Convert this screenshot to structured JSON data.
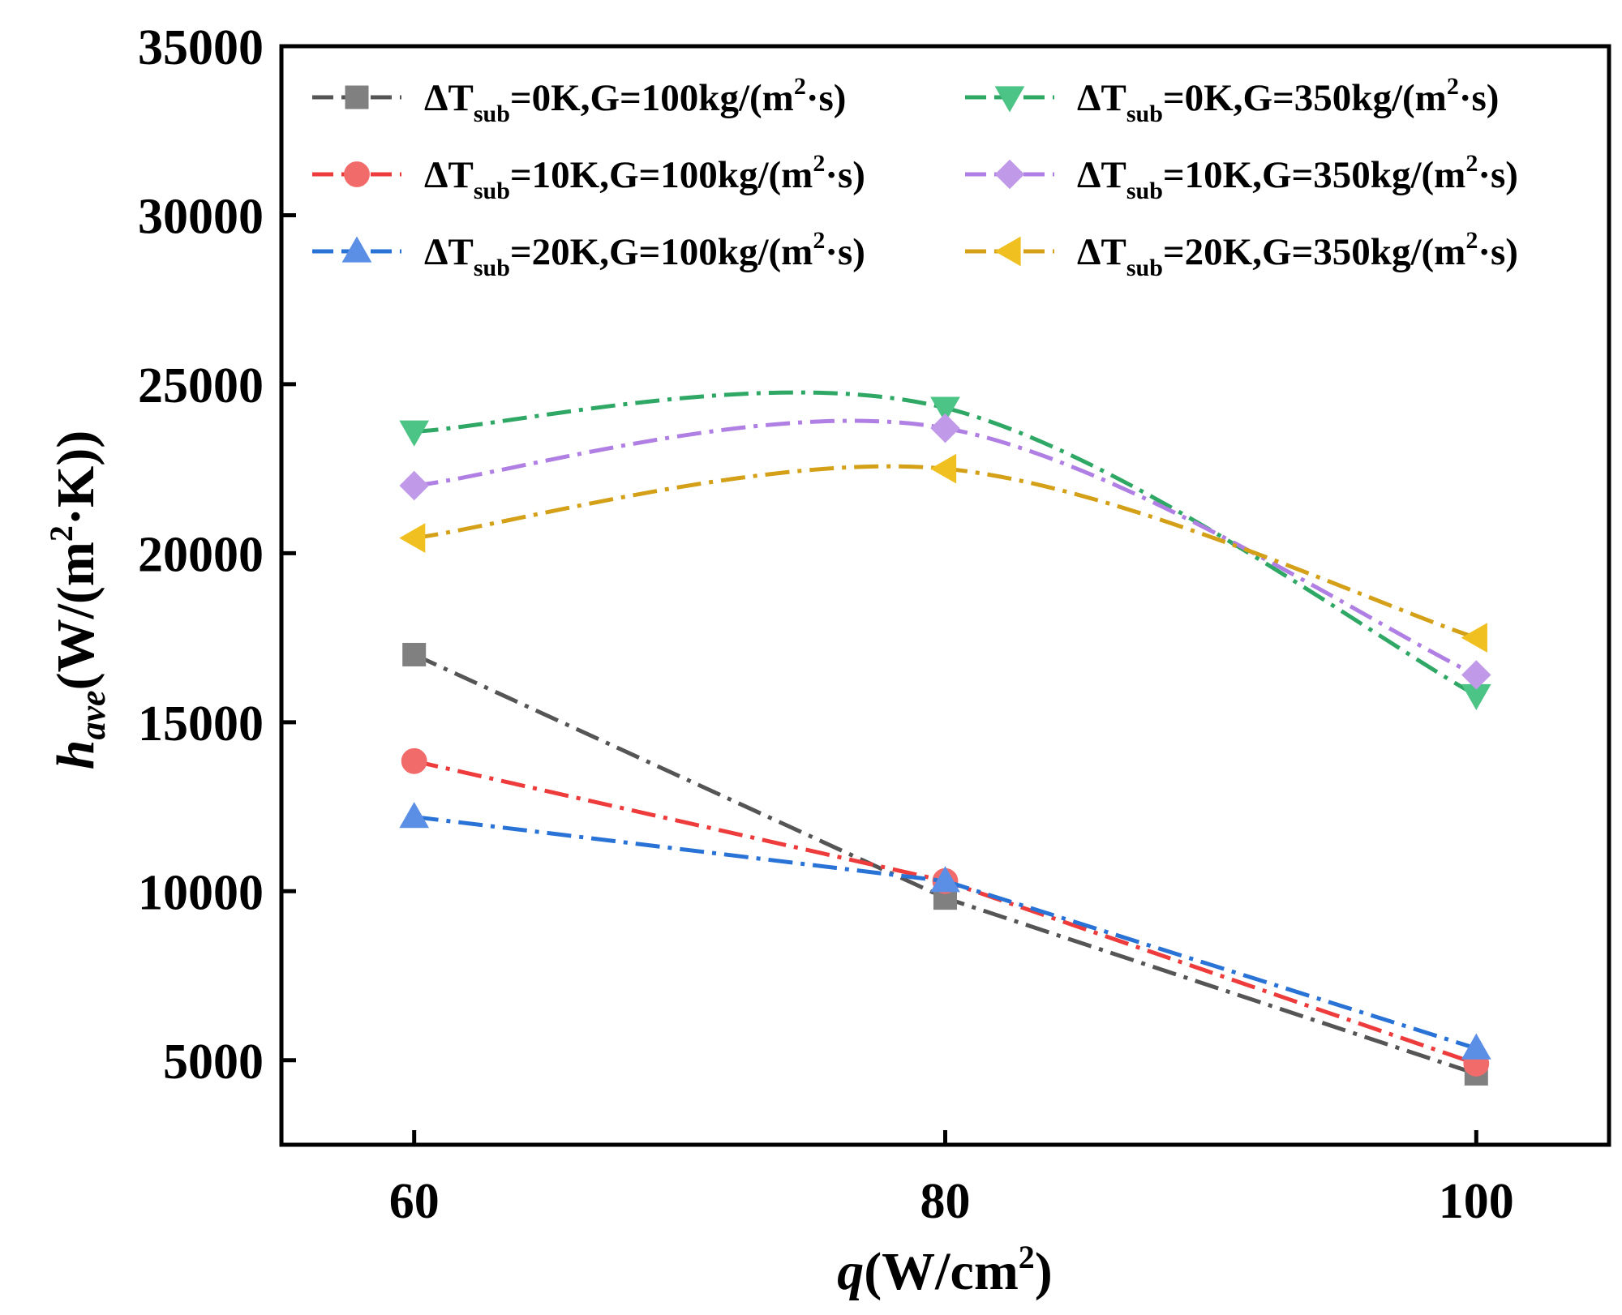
{
  "chart_data": {
    "type": "line",
    "title": "",
    "x": [
      60,
      80,
      100
    ],
    "xlim": [
      55,
      105
    ],
    "ylim": [
      2500,
      35000
    ],
    "xticks": [
      "60",
      "80",
      "100"
    ],
    "yticks": [
      "5000",
      "10000",
      "15000",
      "20000",
      "25000",
      "30000",
      "35000"
    ],
    "xlabel": {
      "italic": "q",
      "text": "(W/cm",
      "sup": "2",
      "tail": ")"
    },
    "ylabel": {
      "italic": "h",
      "sub": "ave",
      "text": "(W/(m",
      "sup": "2",
      "tail": "·K))"
    },
    "legend_position": "top",
    "series": [
      {
        "name": "ΔTsub=0K,G=100kg/(m²·s)",
        "lead": "ΔT",
        "sub": "sub",
        "mid": "=0K,G=100kg/(m",
        "sup": "2",
        "tail": "·s)",
        "color": "#808080",
        "line_color": "#555555",
        "marker": "square",
        "values": [
          17000,
          9800,
          4600
        ]
      },
      {
        "name": "ΔTsub=10K,G=100kg/(m²·s)",
        "lead": "ΔT",
        "sub": "sub",
        "mid": "=10K,G=100kg/(m",
        "sup": "2",
        "tail": "·s)",
        "color": "#f26b6b",
        "line_color": "#ee3b3b",
        "marker": "circle",
        "values": [
          13850,
          10300,
          4900
        ]
      },
      {
        "name": "ΔTsub=20K,G=100kg/(m²·s)",
        "lead": "ΔT",
        "sub": "sub",
        "mid": "=20K,G=100kg/(m",
        "sup": "2",
        "tail": "·s)",
        "color": "#5b8fe6",
        "line_color": "#2a73d6",
        "marker": "triangle-up",
        "values": [
          12200,
          10300,
          5350
        ]
      },
      {
        "name": "ΔTsub=0K,G=350kg/(m²·s)",
        "lead": "ΔT",
        "sub": "sub",
        "mid": "=0K,G=350kg/(m",
        "sup": "2",
        "tail": "·s)",
        "color": "#4cc486",
        "line_color": "#2fa866",
        "marker": "triangle-down",
        "values": [
          23600,
          24300,
          15800
        ]
      },
      {
        "name": "ΔTsub=10K,G=350kg/(m²·s)",
        "lead": "ΔT",
        "sub": "sub",
        "mid": "=10K,G=350kg/(m",
        "sup": "2",
        "tail": "·s)",
        "color": "#c09ae8",
        "line_color": "#b07fe3",
        "marker": "diamond",
        "values": [
          22000,
          23700,
          16400
        ]
      },
      {
        "name": "ΔTsub=20K,G=350kg/(m²·s)",
        "lead": "ΔT",
        "sub": "sub",
        "mid": "=20K,G=350kg/(m",
        "sup": "2",
        "tail": "·s)",
        "color": "#f0c020",
        "line_color": "#d4a017",
        "marker": "triangle-left",
        "values": [
          20450,
          22500,
          17500
        ]
      }
    ]
  }
}
